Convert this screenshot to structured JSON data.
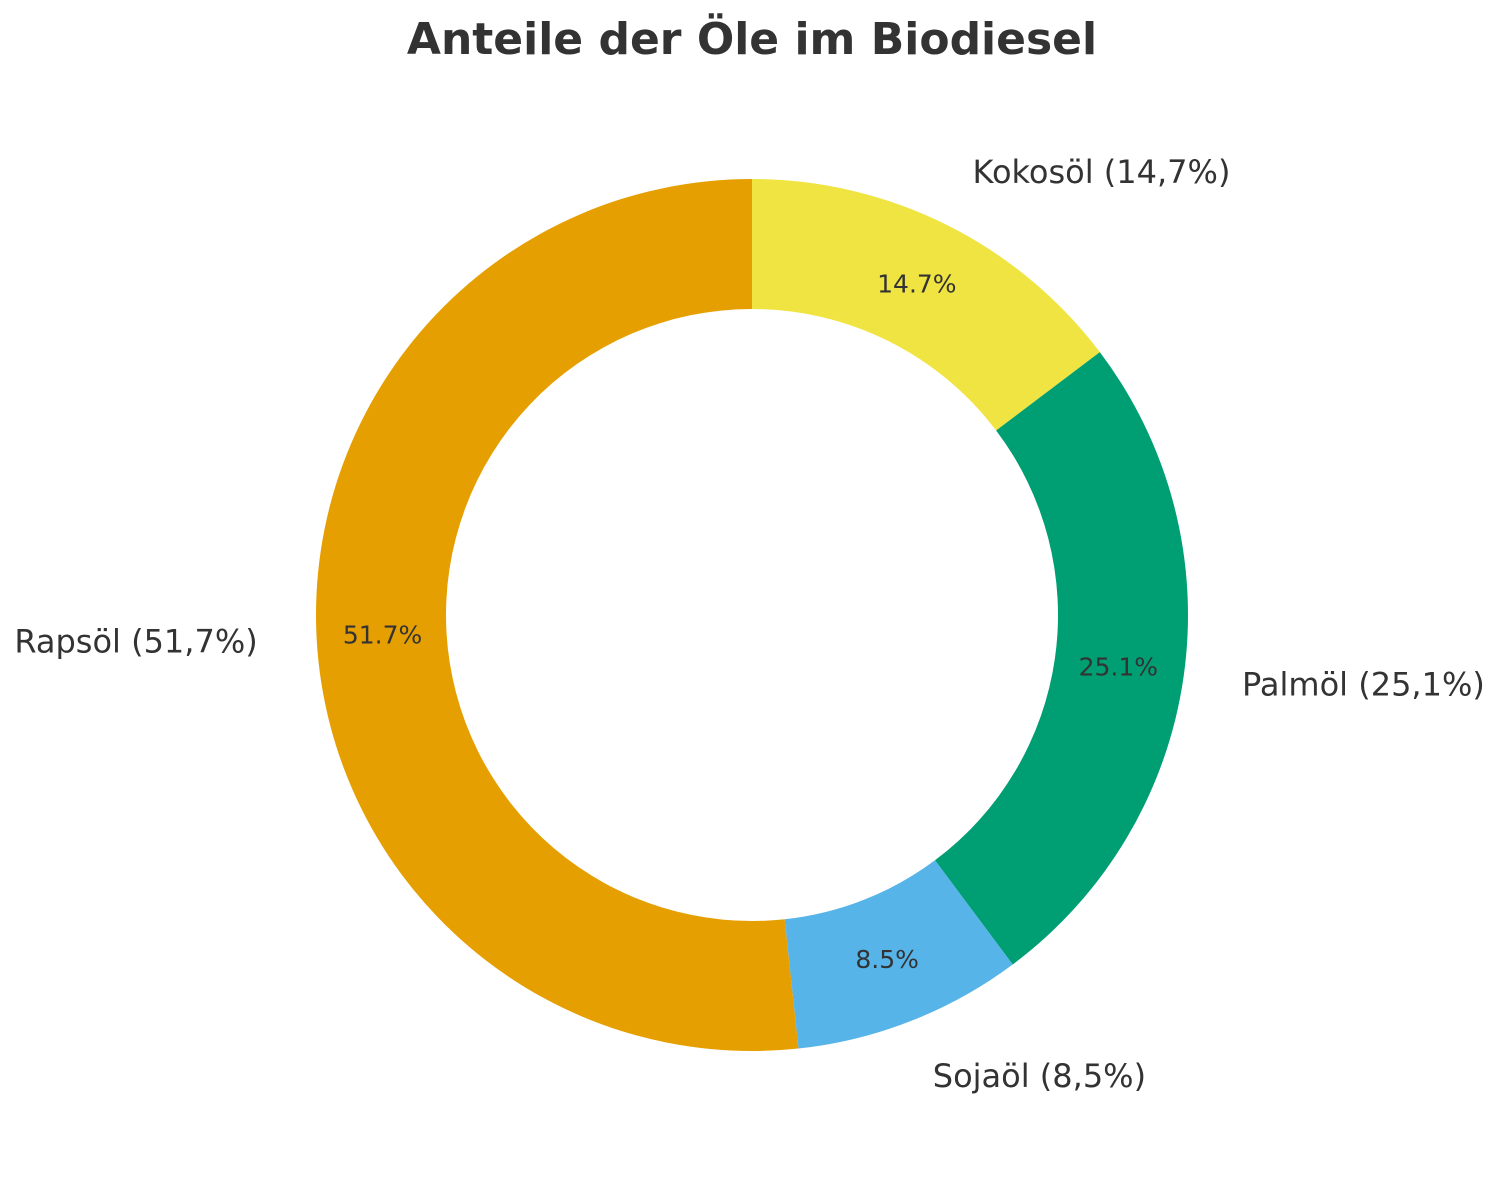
{
  "chart_data": {
    "type": "pie",
    "variant": "donut",
    "title": "Anteile der Öle im Biodiesel",
    "start": "top",
    "direction": "clockwise",
    "slices": [
      {
        "name": "Kokosöl",
        "value": 14.7,
        "label": "Kokosöl (14,7%)",
        "pct_label": "14.7%",
        "color": "#F0E442"
      },
      {
        "name": "Palmöl",
        "value": 25.1,
        "label": "Palmöl (25,1%)",
        "pct_label": "25.1%",
        "color": "#009E73"
      },
      {
        "name": "Sojaöl",
        "value": 8.5,
        "label": "Sojaöl (8,5%)",
        "pct_label": "8.5%",
        "color": "#56B4E9"
      },
      {
        "name": "Rapsöl",
        "value": 51.7,
        "label": "Rapsöl (51,7%)",
        "pct_label": "51.7%",
        "color": "#E69F00"
      }
    ]
  }
}
